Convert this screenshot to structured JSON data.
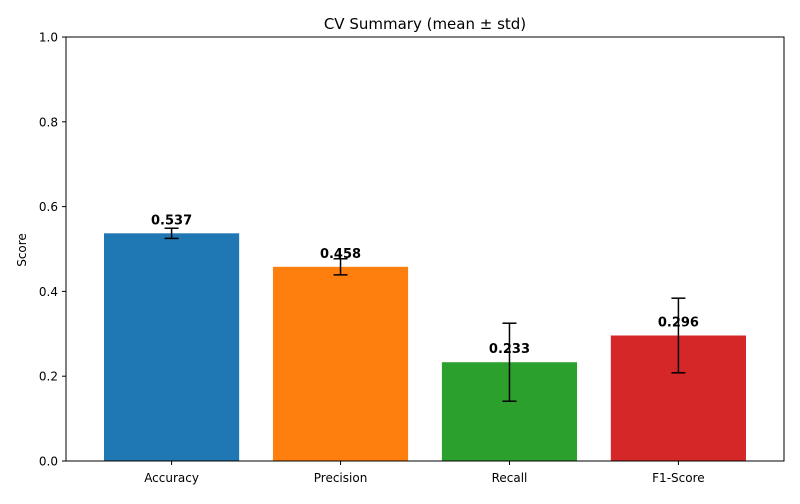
{
  "chart_data": {
    "type": "bar",
    "title": "CV Summary (mean ± std)",
    "xlabel": "",
    "ylabel": "Score",
    "ylim": [
      0,
      1
    ],
    "yticks": [
      0.0,
      0.2,
      0.4,
      0.6,
      0.8,
      1.0
    ],
    "ytick_labels": [
      "0.0",
      "0.2",
      "0.4",
      "0.6",
      "0.8",
      "1.0"
    ],
    "grid": false,
    "legend": "none",
    "categories": [
      "Accuracy",
      "Precision",
      "Recall",
      "F1-Score"
    ],
    "values": [
      0.537,
      0.458,
      0.233,
      0.296
    ],
    "errors": [
      0.012,
      0.019,
      0.092,
      0.088
    ],
    "value_labels": [
      "0.537",
      "0.458",
      "0.233",
      "0.296"
    ],
    "colors": [
      "#1f77b4",
      "#ff7f0e",
      "#2ca02c",
      "#d62728"
    ]
  }
}
